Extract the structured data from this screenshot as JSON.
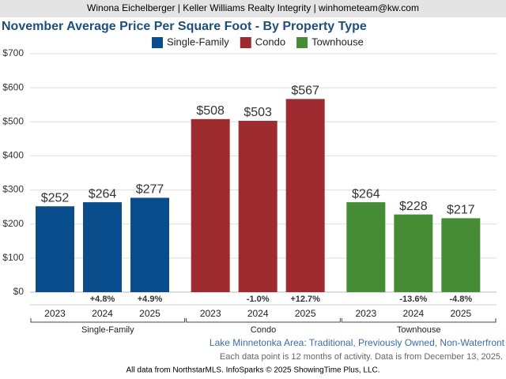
{
  "header": "Winona Eichelberger | Keller Williams Realty Integrity | winhometeam@kw.com",
  "chart_data": {
    "type": "grouped-bar",
    "title": "November Average Price Per Square Foot - By Property Type",
    "categories": [
      "2023",
      "2024",
      "2025"
    ],
    "series": [
      {
        "name": "Single-Family",
        "color": "#0a4d8c",
        "values": [
          252,
          264,
          277
        ],
        "value_labels": [
          "$252",
          "$264",
          "$277"
        ],
        "change_labels": [
          null,
          "+4.8%",
          "+4.9%"
        ]
      },
      {
        "name": "Condo",
        "color": "#9e2b2f",
        "values": [
          508,
          503,
          567
        ],
        "value_labels": [
          "$508",
          "$503",
          "$567"
        ],
        "change_labels": [
          null,
          "-1.0%",
          "+12.7%"
        ]
      },
      {
        "name": "Townhouse",
        "color": "#468c35",
        "values": [
          264,
          228,
          217
        ],
        "value_labels": [
          "$264",
          "$228",
          "$217"
        ],
        "change_labels": [
          null,
          "-13.6%",
          "-4.8%"
        ]
      }
    ],
    "ylim": [
      0,
      700
    ],
    "yticks": [
      {
        "value": 0,
        "label": "$0"
      },
      {
        "value": 100,
        "label": "$100"
      },
      {
        "value": 200,
        "label": "$200"
      },
      {
        "value": 300,
        "label": "$300"
      },
      {
        "value": 400,
        "label": "$400"
      },
      {
        "value": 500,
        "label": "$500"
      },
      {
        "value": 600,
        "label": "$600"
      },
      {
        "value": 700,
        "label": "$700"
      }
    ],
    "grid": true,
    "legend": "top"
  },
  "footer": {
    "area": "Lake Minnetonka Area: Traditional, Previously Owned, Non-Waterfront",
    "note": "Each data point is 12 months of activity. Data is from December 13, 2025.",
    "credit": "All data from NorthstarMLS. InfoSparks © 2025 ShowingTime Plus, LLC."
  }
}
